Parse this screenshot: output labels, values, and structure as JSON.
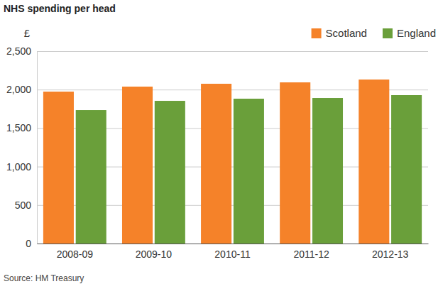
{
  "chart_data": {
    "type": "bar",
    "title": "NHS spending per head",
    "y_label": "£",
    "source": "Source: HM Treasury",
    "categories": [
      "2008-09",
      "2009-10",
      "2010-11",
      "2011-12",
      "2012-13"
    ],
    "series": [
      {
        "name": "Scotland",
        "color": "#f58229",
        "values": [
          1974,
          2039,
          2076,
          2094,
          2131
        ]
      },
      {
        "name": "England",
        "color": "#6a9f3a",
        "values": [
          1734,
          1854,
          1882,
          1891,
          1928
        ]
      }
    ],
    "ylim": [
      0,
      2500
    ],
    "yticks": [
      0,
      500,
      {
        "value": 1000,
        "label": "1,000"
      },
      {
        "value": 1500,
        "label": "1,500"
      },
      {
        "value": 2000,
        "label": "2,000"
      },
      {
        "value": 2500,
        "label": "2,500"
      }
    ],
    "grid": true,
    "legend": "top-right"
  }
}
